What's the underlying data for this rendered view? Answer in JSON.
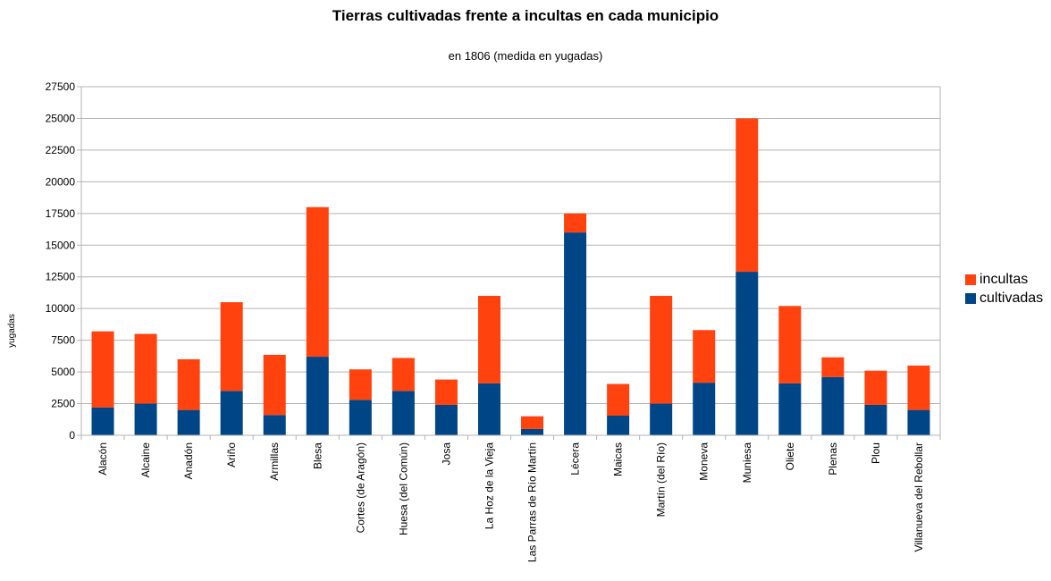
{
  "chart_data": {
    "type": "bar",
    "stacked": true,
    "title": "Tierras cultivadas frente a incultas en cada municipio",
    "subtitle": "en 1806 (medida en yugadas)",
    "xlabel": "",
    "ylabel": "yugadas",
    "ylim": [
      0,
      27500
    ],
    "yticks": [
      0,
      2500,
      5000,
      7500,
      10000,
      12500,
      15000,
      17500,
      20000,
      22500,
      25000,
      27500
    ],
    "grid": true,
    "legend_position": "right",
    "categories": [
      "Alacón",
      "Alcaine",
      "Anadón",
      "Ariño",
      "Armillas",
      "Blesa",
      "Cortes (de Aragón)",
      "Huesa (del Común)",
      "Josa",
      "La Hoz de la Vieja",
      "Las Parras de Río Martín",
      "Lécera",
      "Maicas",
      "Martín (del Río)",
      "Moneva",
      "Muniesa",
      "Oliete",
      "Plenas",
      "Plou",
      "Villanueva del Rebollar"
    ],
    "series": [
      {
        "name": "cultivadas",
        "color": "#004586",
        "values": [
          2200,
          2500,
          2000,
          3500,
          1600,
          6200,
          2800,
          3500,
          2400,
          4100,
          500,
          16000,
          1550,
          2500,
          4150,
          12900,
          4100,
          4600,
          2400,
          2000
        ]
      },
      {
        "name": "incultas",
        "color": "#ff420e",
        "values": [
          6000,
          5500,
          4000,
          7000,
          4750,
          11800,
          2400,
          2600,
          2000,
          6900,
          1000,
          1500,
          2500,
          8500,
          4150,
          12100,
          6100,
          1550,
          2700,
          3500
        ]
      }
    ]
  }
}
